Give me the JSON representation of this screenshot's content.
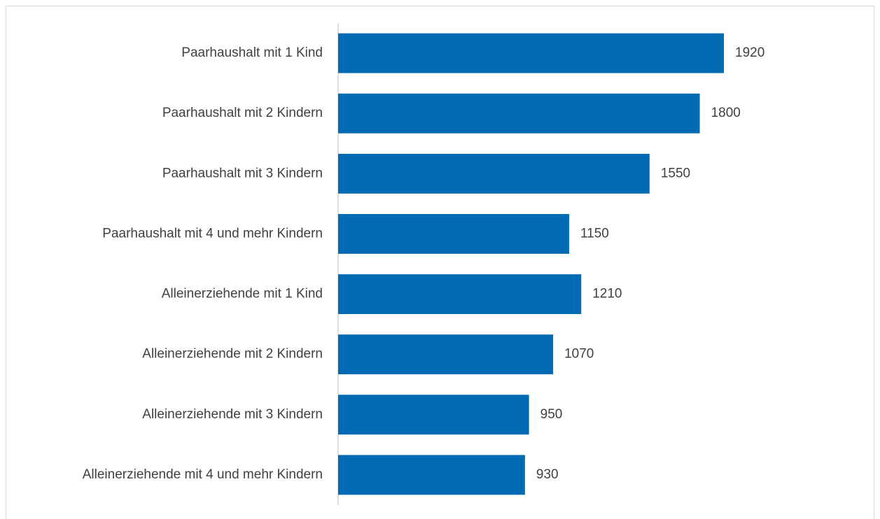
{
  "chart_data": {
    "type": "barh",
    "categories": [
      "Paarhaushalt mit 1 Kind",
      "Paarhaushalt mit 2 Kindern",
      "Paarhaushalt mit 3 Kindern",
      "Paarhaushalt mit 4 und mehr Kindern",
      "Alleinerziehende mit 1 Kind",
      "Alleinerziehende mit 2 Kindern",
      "Alleinerziehende mit 3 Kindern",
      "Alleinerziehende mit 4 und mehr Kindern"
    ],
    "values": [
      1920,
      1800,
      1550,
      1150,
      1210,
      1070,
      950,
      930
    ],
    "color": "#006ab3"
  }
}
